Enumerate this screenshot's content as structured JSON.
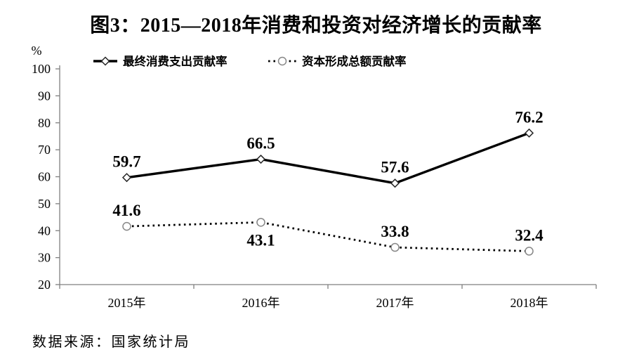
{
  "chart_data": {
    "type": "line",
    "title": "图3：2015—2018年消费和投资对经济增长的贡献率",
    "unit_label": "%",
    "categories": [
      "2015年",
      "2016年",
      "2017年",
      "2018年"
    ],
    "series": [
      {
        "name": "最终消费支出贡献率",
        "values": [
          59.7,
          66.5,
          57.6,
          76.2
        ],
        "line_style": "solid",
        "marker": "diamond",
        "color": "#000000",
        "label_positions": [
          "above",
          "above",
          "above",
          "above"
        ]
      },
      {
        "name": "资本形成总额贡献率",
        "values": [
          41.6,
          43.1,
          33.8,
          32.4
        ],
        "line_style": "dotted",
        "marker": "circle",
        "color": "#000000",
        "label_positions": [
          "above",
          "below",
          "above",
          "above"
        ]
      }
    ],
    "ylim": [
      20,
      100
    ],
    "yticks": [
      100,
      90,
      80,
      70,
      60,
      50,
      40,
      30,
      20
    ],
    "grid": false,
    "legend_position": "top",
    "source": "数据来源：国家统计局",
    "colors": {
      "axis": "#7f7f7f",
      "line": "#000000",
      "marker_circle_stroke": "#878787",
      "marker_diamond_stroke": "#262626",
      "text": "#000000",
      "background": "#ffffff"
    }
  }
}
